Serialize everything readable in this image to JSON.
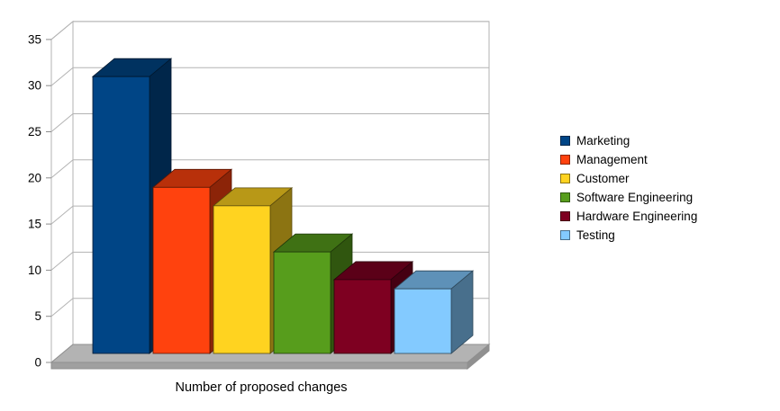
{
  "chart_data": {
    "type": "bar",
    "projection": "3d",
    "title": "",
    "xlabel": "Number of proposed changes",
    "ylabel": "",
    "ylim": [
      0,
      35
    ],
    "ytick_step": 5,
    "yticks": [
      0,
      5,
      10,
      15,
      20,
      25,
      30,
      35
    ],
    "categories": [
      "Marketing",
      "Management",
      "Customer",
      "Software Engineering",
      "Hardware Engineering",
      "Testing"
    ],
    "values": [
      30,
      18,
      16,
      11,
      8,
      7
    ],
    "colors": [
      "#004586",
      "#FF420E",
      "#FFD320",
      "#579D1C",
      "#7E0021",
      "#83CAFF"
    ],
    "legend_position": "right",
    "grid": true,
    "background": "#FFFFFF",
    "wall_color": "#FFFFFF",
    "floor_color": "#B3B3B3",
    "floor_front_color": "#A0A0A0",
    "gridline_color": "#B3B3B3",
    "tick_color": "#8C8C8C",
    "axis_text_color": "#000000"
  }
}
